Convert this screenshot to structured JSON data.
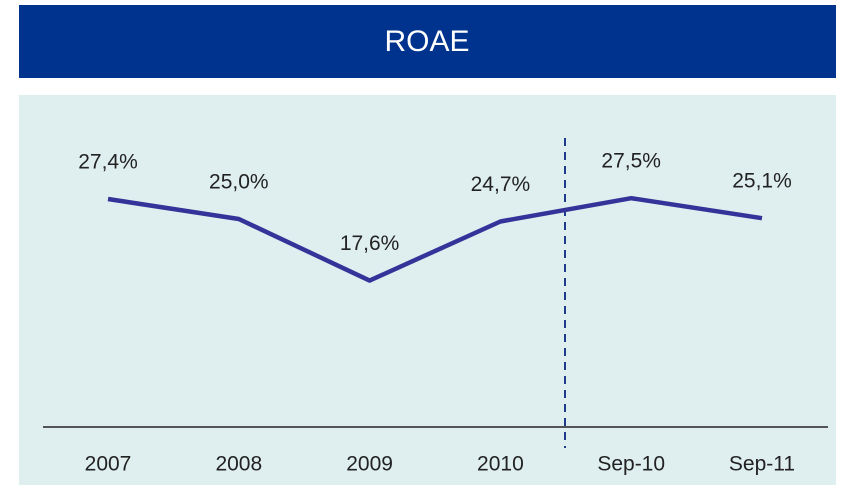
{
  "chart_data": {
    "type": "line",
    "title": "ROAE",
    "categories": [
      "2007",
      "2008",
      "2009",
      "2010",
      "Sep-10",
      "Sep-11"
    ],
    "series": [
      {
        "color": "#333399",
        "values": [
          27.4,
          25.0,
          17.6,
          24.7,
          27.5,
          25.1
        ],
        "value_labels": [
          "27,4%",
          "25,0%",
          "17,6%",
          "24,7%",
          "27,5%",
          "25,1%"
        ]
      }
    ]
  }
}
